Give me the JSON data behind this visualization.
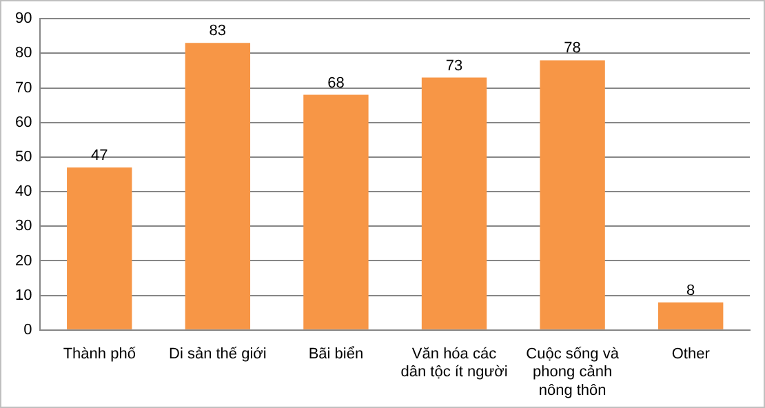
{
  "chart_data": {
    "type": "bar",
    "categories": [
      "Thành phố",
      "Di sản thế giới",
      "Bãi biển",
      "Văn hóa các dân tộc ít người",
      "Cuộc sống và phong cảnh nông thôn",
      "Other"
    ],
    "values": [
      47,
      83,
      68,
      73,
      78,
      8
    ],
    "color": "#f79646",
    "ylim": [
      0,
      90
    ],
    "yticks": [
      0,
      10,
      20,
      30,
      40,
      50,
      60,
      70,
      80,
      90
    ],
    "grid": "y",
    "data_labels": true
  }
}
